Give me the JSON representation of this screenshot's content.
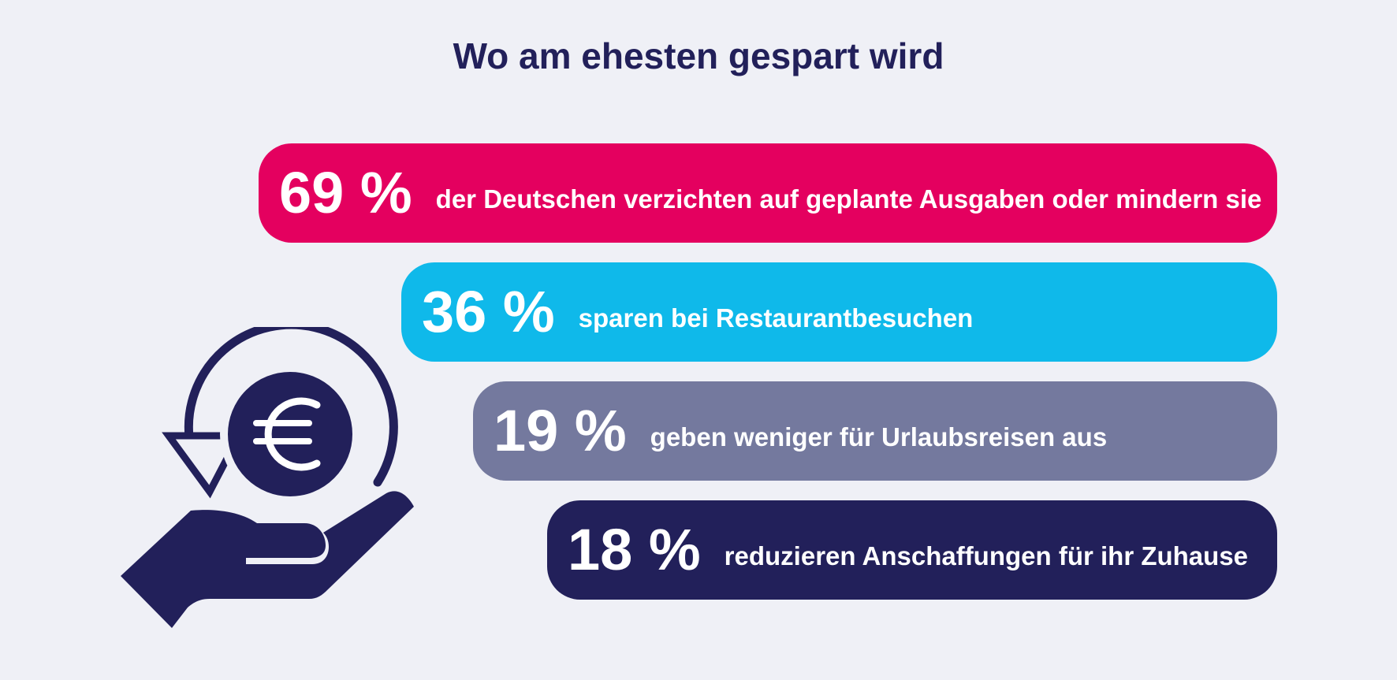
{
  "title": "Wo am ehesten gespart wird",
  "colors": {
    "background": "#eff0f6",
    "title": "#22205a",
    "bar_1": "#e4005f",
    "bar_2": "#0fb9ea",
    "bar_3": "#74799e",
    "bar_4": "#22205a",
    "text_on_bar": "#ffffff"
  },
  "icon": "hand-euro-icon",
  "chart_data": {
    "type": "bar",
    "title": "Wo am ehesten gespart wird",
    "unit": "%",
    "items": [
      {
        "value": 69,
        "value_label": "69 %",
        "label": "der Deutschen verzichten auf geplante Ausgaben oder mindern sie"
      },
      {
        "value": 36,
        "value_label": "36 %",
        "label": "sparen bei Restaurantbesuchen"
      },
      {
        "value": 19,
        "value_label": "19 %",
        "label": "geben weniger für Urlaubsreisen aus"
      },
      {
        "value": 18,
        "value_label": "18 %",
        "label": "reduzieren Anschaffungen für ihr Zuhause"
      }
    ]
  }
}
